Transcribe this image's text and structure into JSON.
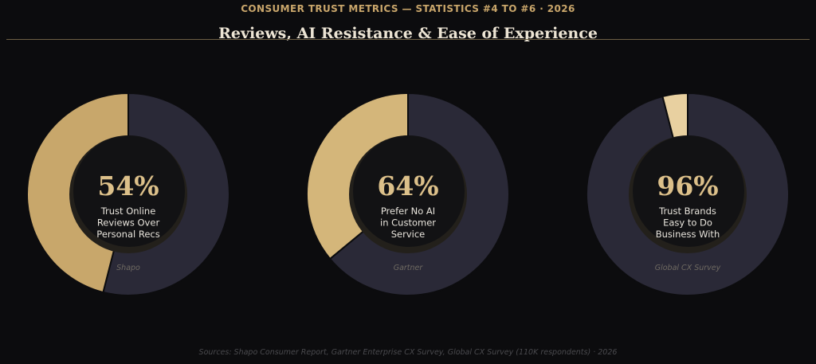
{
  "header": {
    "kicker": "CONSUMER TRUST METRICS — STATISTICS #4 TO #6 · 2026",
    "title": "Reviews, AI Resistance & Ease of Experience"
  },
  "footer": {
    "sources": "Sources: Shapo Consumer Report, Gartner Enterprise CX Survey, Global CX Survey (110K respondents) · 2026"
  },
  "colors": {
    "background": "#0c0c0e",
    "remainder": "#2a2937",
    "center_fill": "#121214",
    "inner_shadow": "#23201b",
    "value_text": "#dcc08a",
    "label_text": "#e8e4dc",
    "source_text": "#6f6a62"
  },
  "chart_data": [
    {
      "type": "pie",
      "style": "donut",
      "values": [
        54,
        46
      ],
      "value_label": "54%",
      "label_lines": [
        "Trust Online",
        "Reviews Over",
        "Personal Recs"
      ],
      "source": "Shapo",
      "accent_color": "#c8a76b"
    },
    {
      "type": "pie",
      "style": "donut",
      "values": [
        64,
        36
      ],
      "value_label": "64%",
      "label_lines": [
        "Prefer No AI",
        "in Customer",
        "Service"
      ],
      "source": "Gartner",
      "accent_color": "#d4b67a"
    },
    {
      "type": "pie",
      "style": "donut",
      "values": [
        96,
        4
      ],
      "value_label": "96%",
      "label_lines": [
        "Trust Brands",
        "Easy to Do",
        "Business With"
      ],
      "source": "Global CX Survey",
      "accent_color": "#e8d0a0"
    }
  ]
}
